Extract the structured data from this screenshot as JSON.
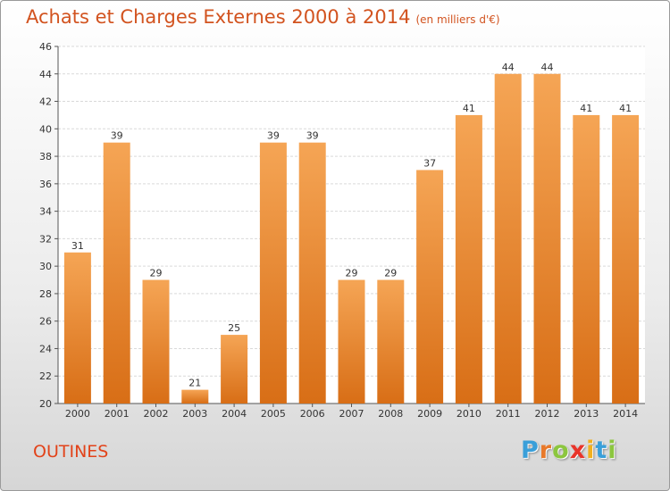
{
  "chart_data": {
    "type": "bar",
    "title": "Achats et Charges Externes 2000 à 2014",
    "subtitle": "(en milliers d'€)",
    "categories": [
      "2000",
      "2001",
      "2002",
      "2003",
      "2004",
      "2005",
      "2006",
      "2007",
      "2008",
      "2009",
      "2010",
      "2011",
      "2012",
      "2013",
      "2014"
    ],
    "values": [
      31,
      39,
      29,
      21,
      25,
      39,
      39,
      29,
      29,
      37,
      41,
      44,
      44,
      41,
      41
    ],
    "ylim": [
      20,
      46
    ],
    "yticks": [
      20,
      22,
      24,
      26,
      28,
      30,
      32,
      34,
      36,
      38,
      40,
      42,
      44,
      46
    ],
    "xlabel": "",
    "ylabel": "",
    "grid": true,
    "legend": "none",
    "bar_color_top": "#f5a555",
    "bar_color_bottom": "#d86e16"
  },
  "commune": "OUTINES",
  "logo": {
    "letters": [
      "P",
      "r",
      "o",
      "x",
      "i",
      "t",
      "i"
    ],
    "colors": [
      "#3a9fd9",
      "#e8792a",
      "#8cc63f",
      "#e8342a",
      "#f2b01e",
      "#3a9fd9",
      "#8cc63f"
    ]
  }
}
